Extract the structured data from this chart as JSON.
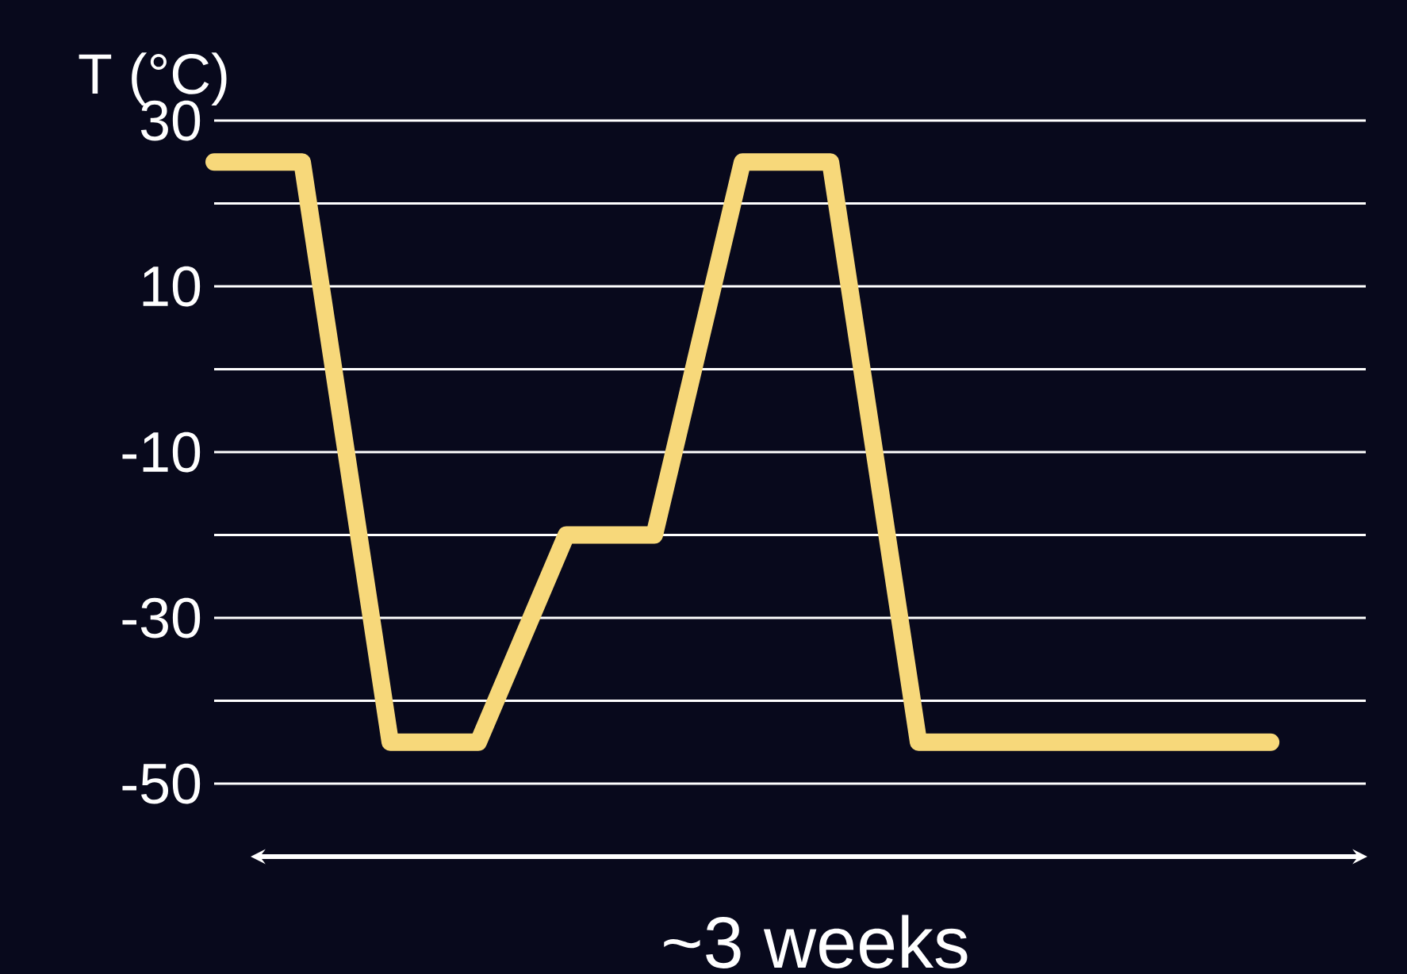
{
  "chart_data": {
    "type": "line",
    "ylabel": "T (°C)",
    "categories": [
      null,
      null,
      null,
      null,
      null,
      null,
      null,
      null,
      null,
      null,
      null,
      null,
      null
    ],
    "values": [
      25,
      25,
      -45,
      -45,
      -20,
      -20,
      25,
      25,
      -45,
      -45,
      -45,
      -45,
      -45
    ],
    "color": "#f7d87a",
    "ylim": [
      -50,
      30
    ],
    "yticks": [
      30,
      {
        "value": 20,
        "label": null
      },
      10,
      {
        "value": 0,
        "label": null
      },
      -10,
      {
        "value": -20,
        "label": null
      },
      -30,
      {
        "value": -40,
        "label": null
      },
      -50
    ],
    "grid": "y",
    "tick_labels": "y",
    "annotations": [
      "~3 weeks"
    ]
  }
}
